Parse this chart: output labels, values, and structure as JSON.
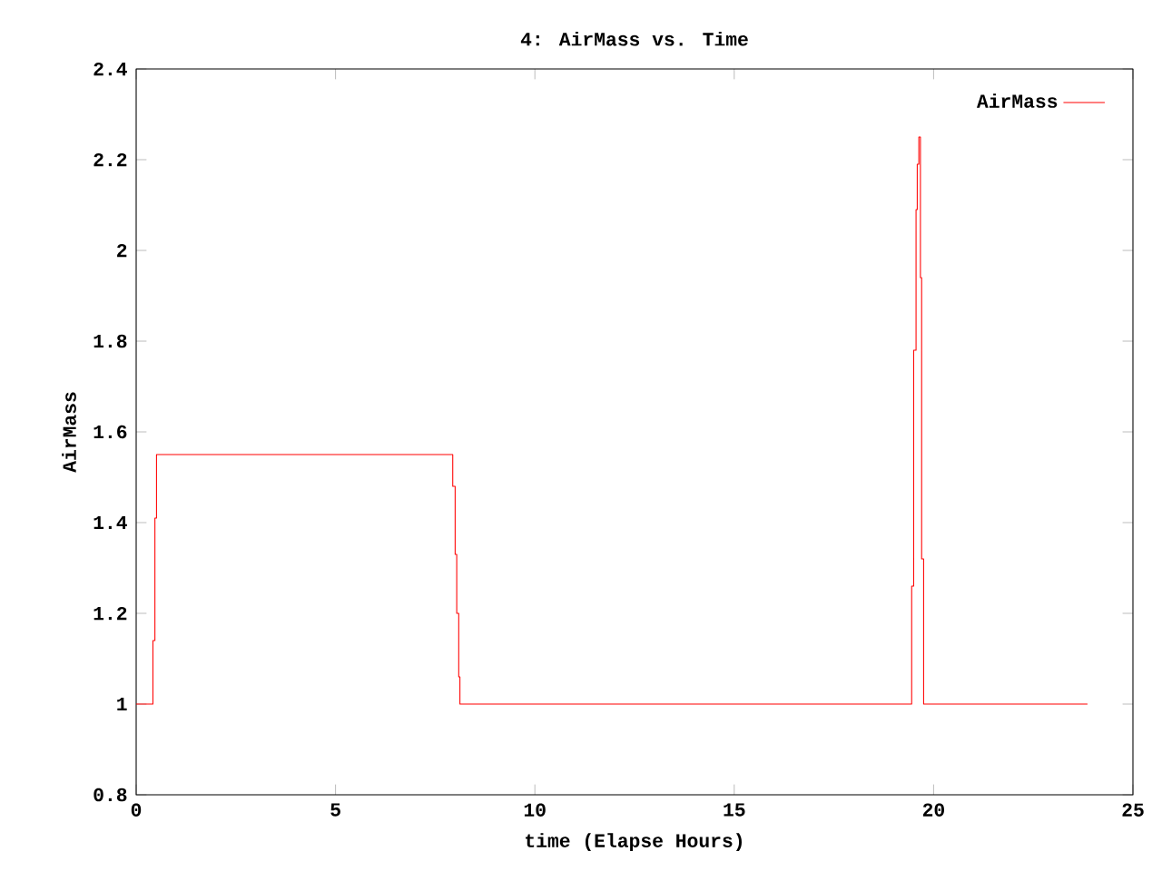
{
  "chart_data": {
    "type": "step",
    "title": "4: AirMass vs. Time",
    "xlabel": "time (Elapse Hours)",
    "ylabel": "AirMass",
    "x": [
      0,
      0.42,
      0.47,
      0.51,
      7.94,
      8.0,
      8.04,
      8.09,
      8.12,
      19.45,
      19.5,
      19.56,
      19.59,
      19.63,
      19.67,
      19.7,
      19.75,
      23.86
    ],
    "series": [
      {
        "name": "AirMass",
        "color": "#ff0000",
        "values": [
          1,
          1.14,
          1.41,
          1.55,
          1.48,
          1.33,
          1.2,
          1.06,
          1.0,
          1.26,
          1.78,
          2.09,
          2.19,
          2.25,
          1.94,
          1.32,
          1.0,
          1.0
        ]
      }
    ],
    "xlim": [
      0,
      25
    ],
    "ylim": [
      0.8,
      2.4
    ],
    "xticks": [
      0,
      5,
      10,
      15,
      20,
      25
    ],
    "yticks": [
      0.8,
      1,
      1.2,
      1.4,
      1.6,
      1.8,
      2,
      2.2,
      2.4
    ],
    "legend": "top right",
    "grid": false,
    "marker": "none"
  }
}
